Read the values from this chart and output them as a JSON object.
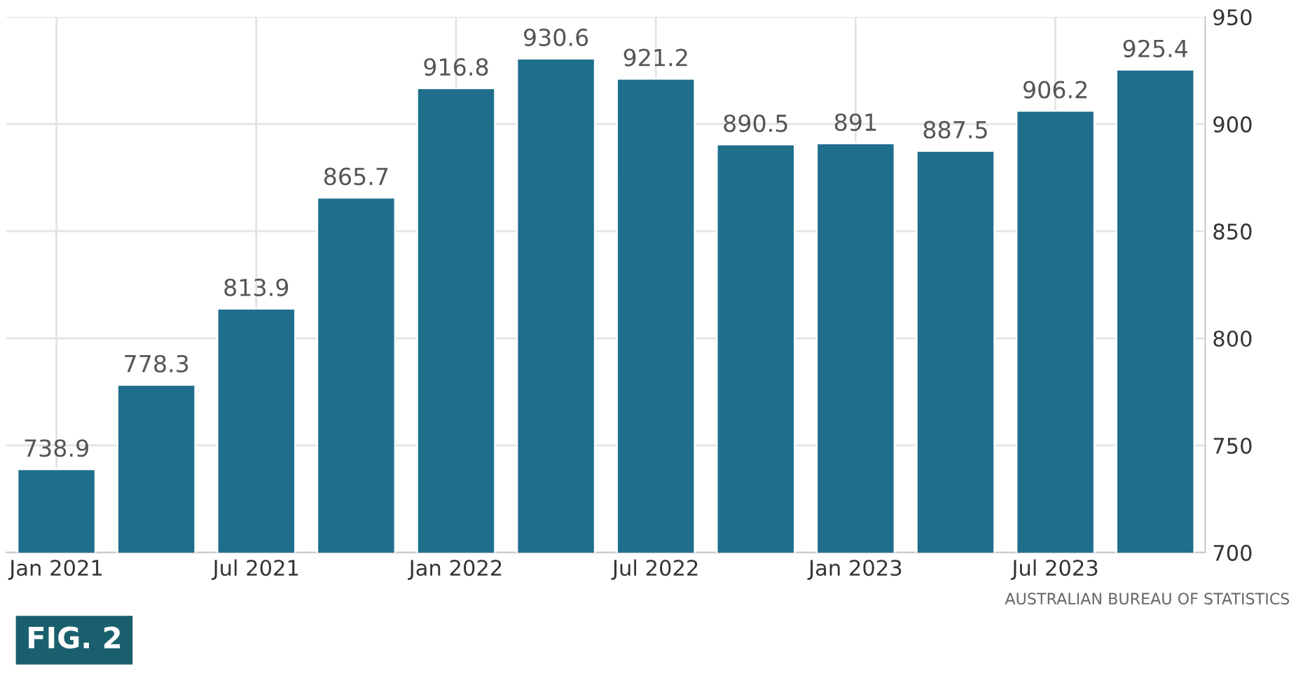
{
  "chart_data": {
    "type": "bar",
    "categories": [
      "Jan 2021",
      null,
      "Jul 2021",
      null,
      "Jan 2022",
      null,
      "Jul 2022",
      null,
      "Jan 2023",
      null,
      "Jul 2023",
      null
    ],
    "values": [
      738.9,
      778.3,
      813.9,
      865.7,
      916.8,
      930.6,
      921.2,
      890.5,
      891,
      887.5,
      906.2,
      925.4
    ],
    "color": "#1f6e8c",
    "ylim": [
      700,
      950
    ],
    "yticks": [
      700,
      750,
      800,
      850,
      900,
      950
    ],
    "grid": true,
    "data_labels": true,
    "annotations": [
      "AUSTRALIAN BUREAU OF STATISTICS",
      "FIG. 2"
    ]
  }
}
